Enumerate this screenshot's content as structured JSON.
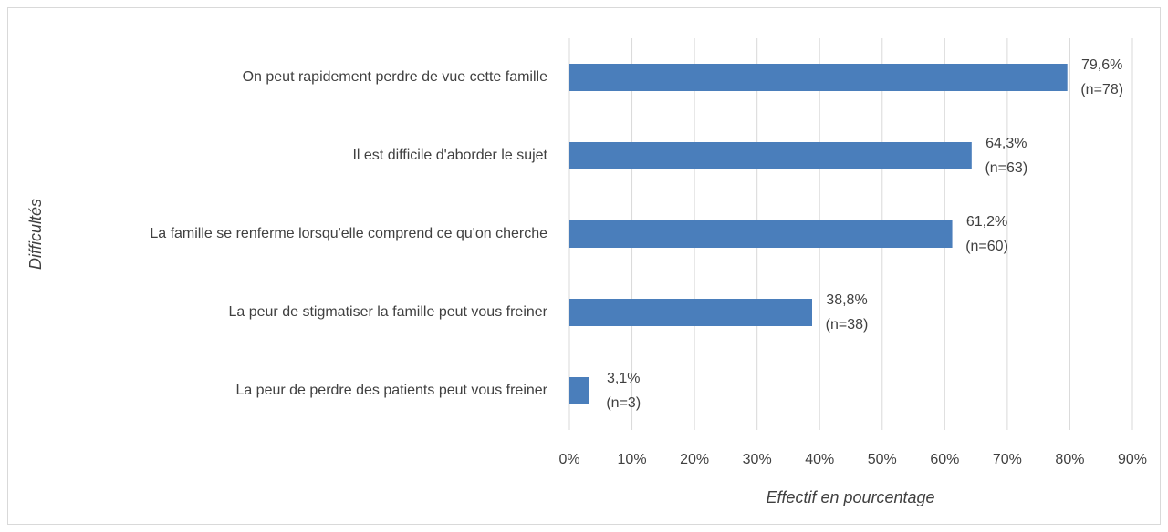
{
  "chart_data": {
    "type": "bar",
    "orientation": "horizontal",
    "categories": [
      "On peut rapidement perdre de vue cette famille",
      "Il est difficile d'aborder le sujet",
      "La famille se renferme lorsqu'elle comprend ce qu'on cherche",
      "La peur de stigmatiser la famille peut vous freiner",
      "La peur de perdre des patients peut vous freiner"
    ],
    "values": [
      79.6,
      64.3,
      61.2,
      38.8,
      3.1
    ],
    "value_labels": [
      "79,6%",
      "64,3%",
      "61,2%",
      "38,8%",
      "3,1%"
    ],
    "count_labels": [
      "(n=78)",
      "(n=63)",
      "(n=60)",
      "(n=38)",
      "(n=3)"
    ],
    "color": "#4a7ebb",
    "xlim": [
      0,
      90
    ],
    "xticks": [
      {
        "value": 0,
        "label": "0%"
      },
      {
        "value": 10,
        "label": "10%"
      },
      {
        "value": 20,
        "label": "20%"
      },
      {
        "value": 30,
        "label": "30%"
      },
      {
        "value": 40,
        "label": "40%"
      },
      {
        "value": 50,
        "label": "50%"
      },
      {
        "value": 60,
        "label": "60%"
      },
      {
        "value": 70,
        "label": "70%"
      },
      {
        "value": 80,
        "label": "80%"
      },
      {
        "value": 90,
        "label": "90%"
      }
    ],
    "grid": true,
    "xlabel": "Effectif en pourcentage",
    "ylabel": "Difficultés"
  }
}
